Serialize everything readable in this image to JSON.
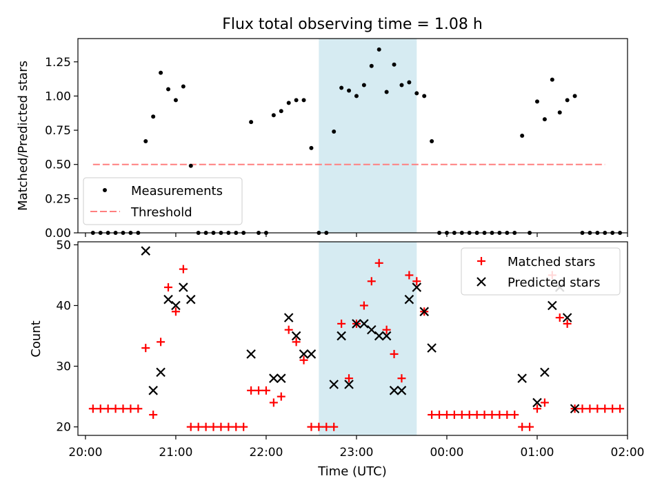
{
  "figure": {
    "title": "Flux total observing time = 1.08 h"
  },
  "colors": {
    "measurement": "#000000",
    "threshold": "#ff7f7f",
    "matched": "#ff0000",
    "predicted": "#000000",
    "highlight": "#add8e6"
  },
  "chart_data": [
    {
      "type": "scatter",
      "title": "Flux total observing time = 1.08 h",
      "xlabel": "",
      "ylabel": "Matched/Predicted stars",
      "xlim": [
        "19:55",
        "02:00"
      ],
      "ylim": [
        0,
        1.42
      ],
      "yticks": [
        "0.00",
        "0.25",
        "0.50",
        "0.75",
        "1.00",
        "1.25"
      ],
      "highlight_span": [
        "22:35",
        "23:40"
      ],
      "legend": {
        "position": "lower-left",
        "entries": [
          "Measurements",
          "Threshold"
        ]
      },
      "threshold": {
        "name": "Threshold",
        "value": 0.5,
        "x_start": "20:05",
        "x_end": "01:45",
        "style": "dashed"
      },
      "series": [
        {
          "name": "Measurements",
          "marker": "dot",
          "points": [
            [
              "20:05",
              0
            ],
            [
              "20:10",
              0
            ],
            [
              "20:15",
              0
            ],
            [
              "20:20",
              0
            ],
            [
              "20:25",
              0
            ],
            [
              "20:30",
              0
            ],
            [
              "20:35",
              0
            ],
            [
              "20:40",
              0.67
            ],
            [
              "20:45",
              0.85
            ],
            [
              "20:50",
              1.17
            ],
            [
              "20:55",
              1.05
            ],
            [
              "21:00",
              0.97
            ],
            [
              "21:05",
              1.07
            ],
            [
              "21:10",
              0.49
            ],
            [
              "21:15",
              0
            ],
            [
              "21:20",
              0
            ],
            [
              "21:25",
              0
            ],
            [
              "21:30",
              0
            ],
            [
              "21:35",
              0
            ],
            [
              "21:40",
              0
            ],
            [
              "21:45",
              0
            ],
            [
              "21:50",
              0.81
            ],
            [
              "21:55",
              0
            ],
            [
              "22:00",
              0
            ],
            [
              "22:05",
              0.86
            ],
            [
              "22:10",
              0.89
            ],
            [
              "22:15",
              0.95
            ],
            [
              "22:20",
              0.97
            ],
            [
              "22:25",
              0.97
            ],
            [
              "22:30",
              0.62
            ],
            [
              "22:35",
              0
            ],
            [
              "22:40",
              0
            ],
            [
              "22:45",
              0.74
            ],
            [
              "22:50",
              1.06
            ],
            [
              "22:55",
              1.04
            ],
            [
              "23:00",
              1.0
            ],
            [
              "23:05",
              1.08
            ],
            [
              "23:10",
              1.22
            ],
            [
              "23:15",
              1.34
            ],
            [
              "23:20",
              1.03
            ],
            [
              "23:25",
              1.23
            ],
            [
              "23:30",
              1.08
            ],
            [
              "23:35",
              1.1
            ],
            [
              "23:40",
              1.02
            ],
            [
              "23:45",
              1.0
            ],
            [
              "23:50",
              0.67
            ],
            [
              "23:55",
              0
            ],
            [
              "00:00",
              0
            ],
            [
              "00:05",
              0
            ],
            [
              "00:10",
              0
            ],
            [
              "00:15",
              0
            ],
            [
              "00:20",
              0
            ],
            [
              "00:25",
              0
            ],
            [
              "00:30",
              0
            ],
            [
              "00:35",
              0
            ],
            [
              "00:40",
              0
            ],
            [
              "00:45",
              0
            ],
            [
              "00:50",
              0.71
            ],
            [
              "00:55",
              0
            ],
            [
              "01:00",
              0.96
            ],
            [
              "01:05",
              0.83
            ],
            [
              "01:10",
              1.12
            ],
            [
              "01:15",
              0.88
            ],
            [
              "01:20",
              0.97
            ],
            [
              "01:25",
              1.0
            ],
            [
              "01:30",
              0
            ],
            [
              "01:35",
              0
            ],
            [
              "01:40",
              0
            ],
            [
              "01:45",
              0
            ],
            [
              "01:50",
              0
            ],
            [
              "01:55",
              0
            ]
          ]
        }
      ]
    },
    {
      "type": "scatter",
      "title": "",
      "xlabel": "Time (UTC)",
      "ylabel": "Count",
      "xlim": [
        "19:55",
        "02:00"
      ],
      "ylim": [
        18.6,
        50.5
      ],
      "yticks": [
        "20",
        "30",
        "40",
        "50"
      ],
      "xticks": [
        "20:00",
        "21:00",
        "22:00",
        "23:00",
        "00:00",
        "01:00",
        "02:00"
      ],
      "highlight_span": [
        "22:35",
        "23:40"
      ],
      "legend": {
        "position": "top-right",
        "entries": [
          "Matched stars",
          "Predicted stars"
        ]
      },
      "series": [
        {
          "name": "Matched stars",
          "marker": "plus",
          "points": [
            [
              "20:05",
              23
            ],
            [
              "20:10",
              23
            ],
            [
              "20:15",
              23
            ],
            [
              "20:20",
              23
            ],
            [
              "20:25",
              23
            ],
            [
              "20:30",
              23
            ],
            [
              "20:35",
              23
            ],
            [
              "20:40",
              33
            ],
            [
              "20:45",
              22
            ],
            [
              "20:50",
              34
            ],
            [
              "20:55",
              43
            ],
            [
              "21:00",
              39
            ],
            [
              "21:05",
              46
            ],
            [
              "21:10",
              20
            ],
            [
              "21:15",
              20
            ],
            [
              "21:20",
              20
            ],
            [
              "21:25",
              20
            ],
            [
              "21:30",
              20
            ],
            [
              "21:35",
              20
            ],
            [
              "21:40",
              20
            ],
            [
              "21:45",
              20
            ],
            [
              "21:50",
              26
            ],
            [
              "21:55",
              26
            ],
            [
              "22:00",
              26
            ],
            [
              "22:05",
              24
            ],
            [
              "22:10",
              25
            ],
            [
              "22:15",
              36
            ],
            [
              "22:20",
              34
            ],
            [
              "22:25",
              31
            ],
            [
              "22:30",
              20
            ],
            [
              "22:35",
              20
            ],
            [
              "22:40",
              20
            ],
            [
              "22:45",
              20
            ],
            [
              "22:50",
              37
            ],
            [
              "22:55",
              28
            ],
            [
              "23:00",
              37
            ],
            [
              "23:05",
              40
            ],
            [
              "23:10",
              44
            ],
            [
              "23:15",
              47
            ],
            [
              "23:20",
              36
            ],
            [
              "23:25",
              32
            ],
            [
              "23:30",
              28
            ],
            [
              "23:35",
              45
            ],
            [
              "23:40",
              44
            ],
            [
              "23:45",
              39
            ],
            [
              "23:50",
              22
            ],
            [
              "23:55",
              22
            ],
            [
              "00:00",
              22
            ],
            [
              "00:05",
              22
            ],
            [
              "00:10",
              22
            ],
            [
              "00:15",
              22
            ],
            [
              "00:20",
              22
            ],
            [
              "00:25",
              22
            ],
            [
              "00:30",
              22
            ],
            [
              "00:35",
              22
            ],
            [
              "00:40",
              22
            ],
            [
              "00:45",
              22
            ],
            [
              "00:50",
              20
            ],
            [
              "00:55",
              20
            ],
            [
              "01:00",
              23
            ],
            [
              "01:05",
              24
            ],
            [
              "01:10",
              45
            ],
            [
              "01:15",
              38
            ],
            [
              "01:20",
              37
            ],
            [
              "01:25",
              23
            ],
            [
              "01:30",
              23
            ],
            [
              "01:35",
              23
            ],
            [
              "01:40",
              23
            ],
            [
              "01:45",
              23
            ],
            [
              "01:50",
              23
            ],
            [
              "01:55",
              23
            ]
          ]
        },
        {
          "name": "Predicted stars",
          "marker": "x",
          "points": [
            [
              "20:40",
              49
            ],
            [
              "20:45",
              26
            ],
            [
              "20:50",
              29
            ],
            [
              "20:55",
              41
            ],
            [
              "21:00",
              40
            ],
            [
              "21:05",
              43
            ],
            [
              "21:10",
              41
            ],
            [
              "21:50",
              32
            ],
            [
              "22:05",
              28
            ],
            [
              "22:10",
              28
            ],
            [
              "22:15",
              38
            ],
            [
              "22:20",
              35
            ],
            [
              "22:25",
              32
            ],
            [
              "22:30",
              32
            ],
            [
              "22:45",
              27
            ],
            [
              "22:50",
              35
            ],
            [
              "22:55",
              27
            ],
            [
              "23:00",
              37
            ],
            [
              "23:05",
              37
            ],
            [
              "23:10",
              36
            ],
            [
              "23:15",
              35
            ],
            [
              "23:20",
              35
            ],
            [
              "23:25",
              26
            ],
            [
              "23:30",
              26
            ],
            [
              "23:35",
              41
            ],
            [
              "23:40",
              43
            ],
            [
              "23:45",
              39
            ],
            [
              "23:50",
              33
            ],
            [
              "00:50",
              28
            ],
            [
              "01:00",
              24
            ],
            [
              "01:05",
              29
            ],
            [
              "01:10",
              40
            ],
            [
              "01:15",
              43
            ],
            [
              "01:20",
              38
            ],
            [
              "01:25",
              23
            ]
          ]
        }
      ]
    }
  ]
}
